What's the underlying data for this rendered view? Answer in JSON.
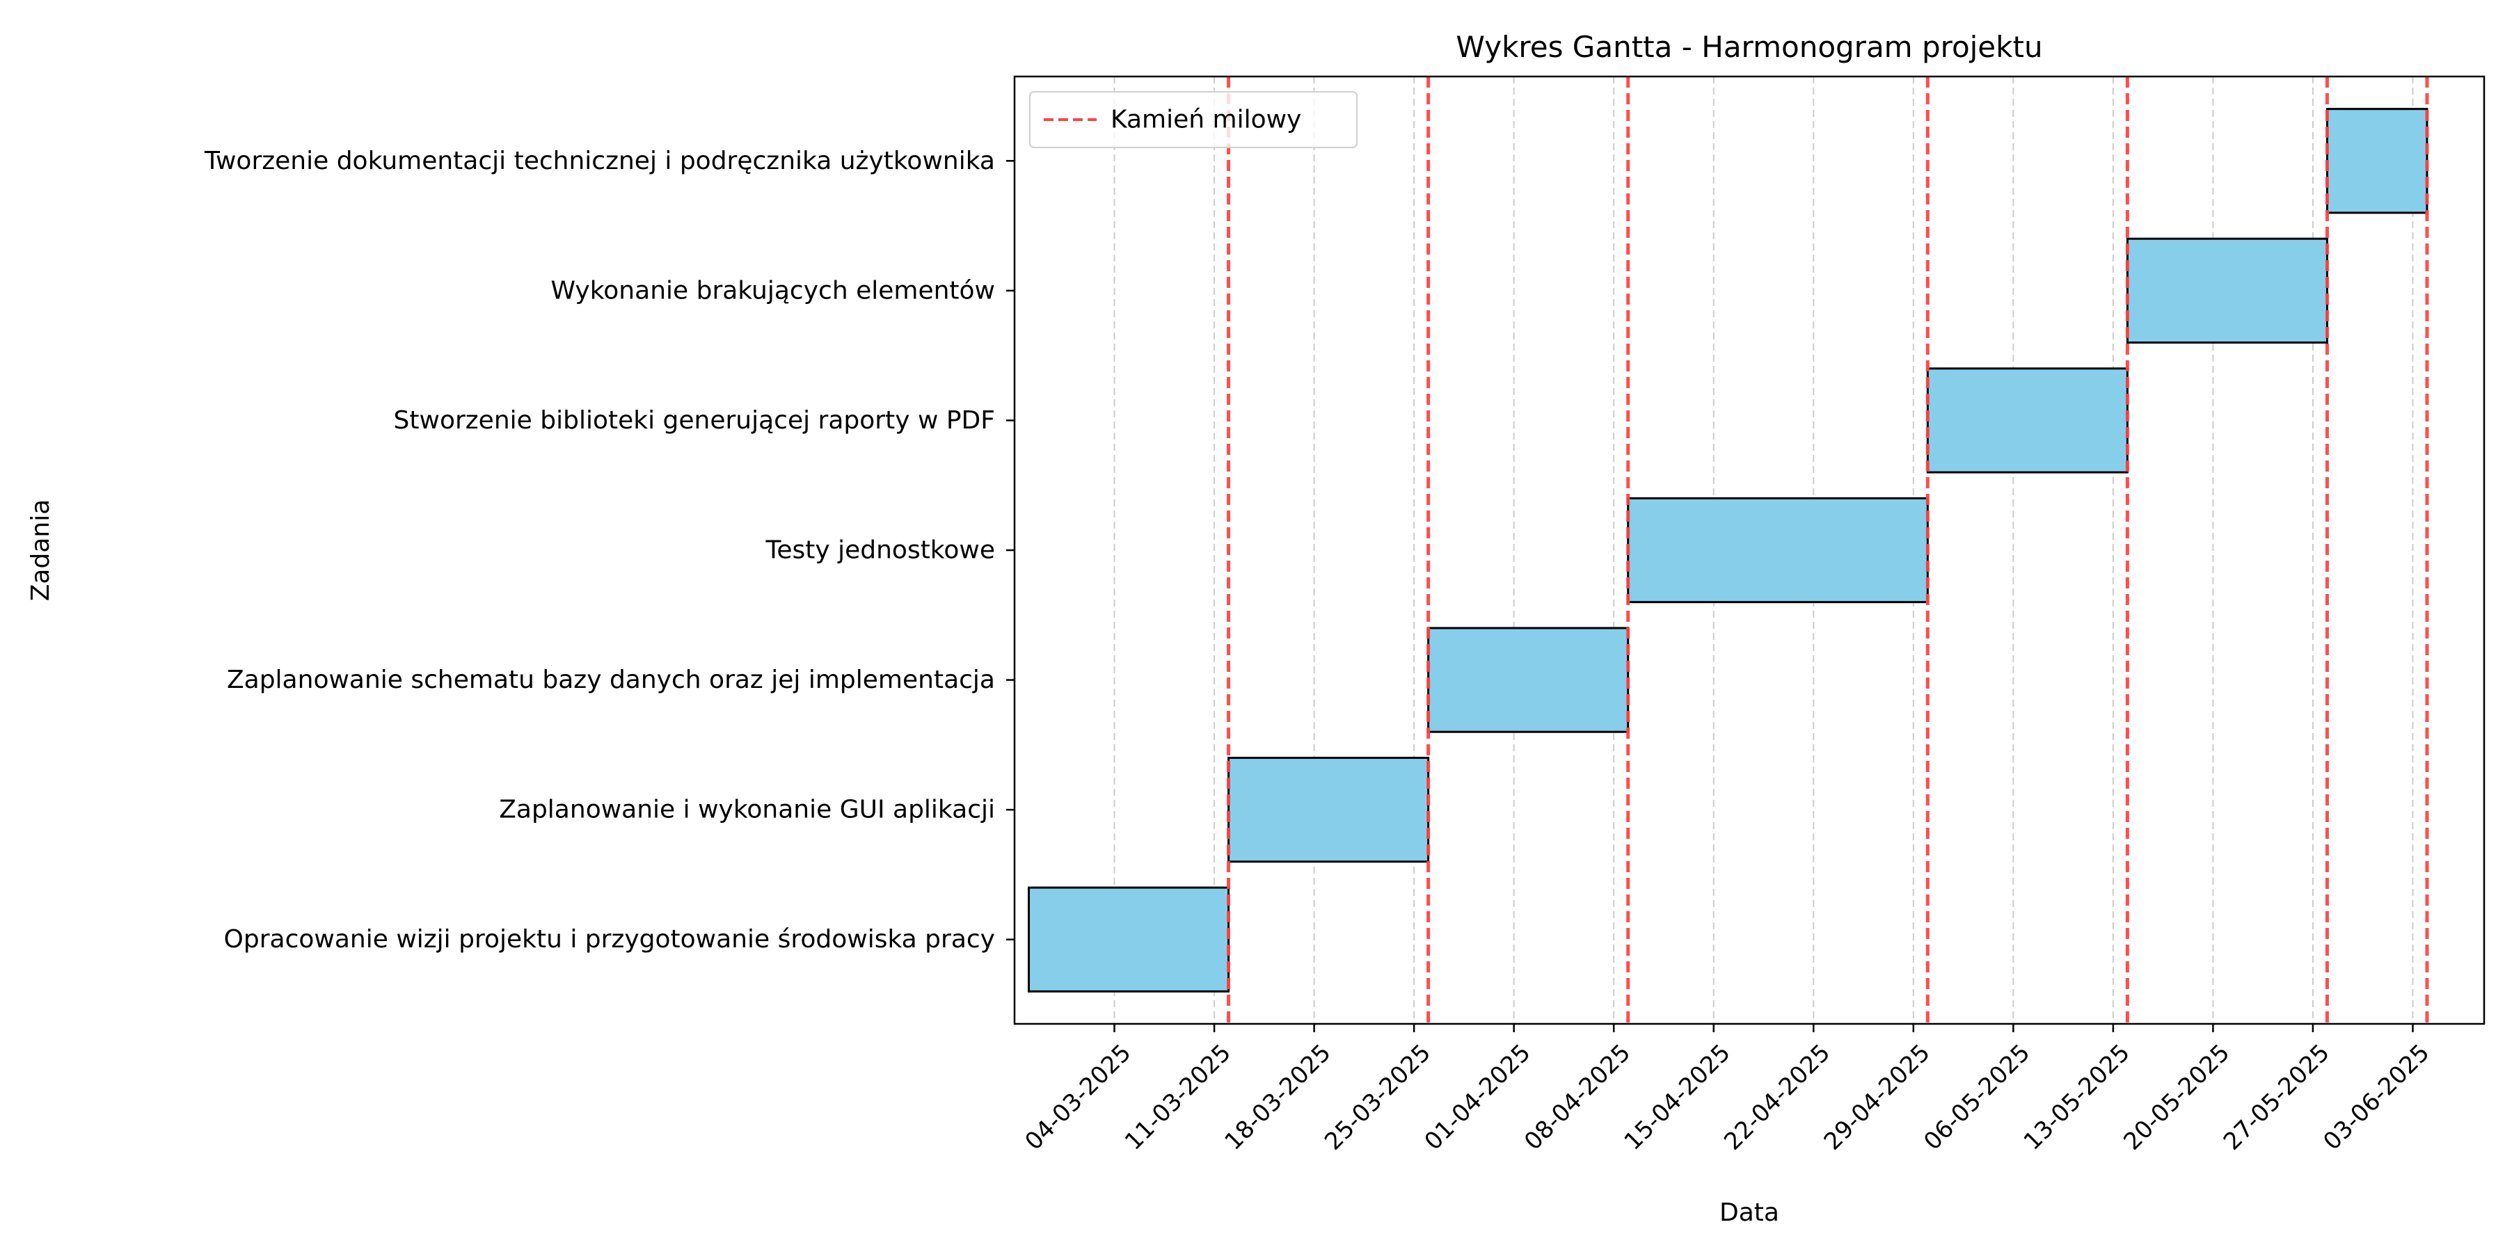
{
  "chart_data": {
    "type": "gantt",
    "title": "Wykres Gantta - Harmonogram projektu",
    "xlabel": "Data",
    "ylabel": "Zadania",
    "xlim": [
      "2025-02-25",
      "2025-06-08"
    ],
    "x_ticks": [
      "2025-03-04",
      "2025-03-11",
      "2025-03-18",
      "2025-03-25",
      "2025-04-01",
      "2025-04-08",
      "2025-04-15",
      "2025-04-22",
      "2025-04-29",
      "2025-05-06",
      "2025-05-13",
      "2025-05-20",
      "2025-05-27",
      "2025-06-03"
    ],
    "x_tick_labels": [
      "04-03-2025",
      "11-03-2025",
      "18-03-2025",
      "25-03-2025",
      "01-04-2025",
      "08-04-2025",
      "15-04-2025",
      "22-04-2025",
      "29-04-2025",
      "06-05-2025",
      "13-05-2025",
      "20-05-2025",
      "27-05-2025",
      "03-06-2025"
    ],
    "tasks": [
      {
        "name": "Opracowanie wizji projektu i przygotowanie środowiska pracy",
        "start": "2025-02-26",
        "end": "2025-03-12"
      },
      {
        "name": "Zaplanowanie i wykonanie GUI aplikacji",
        "start": "2025-03-12",
        "end": "2025-03-26"
      },
      {
        "name": "Zaplanowanie schematu bazy danych oraz jej implementacja",
        "start": "2025-03-26",
        "end": "2025-04-09"
      },
      {
        "name": "Testy jednostkowe",
        "start": "2025-04-09",
        "end": "2025-04-30"
      },
      {
        "name": "Stworzenie biblioteki generującej raporty w PDF",
        "start": "2025-04-30",
        "end": "2025-05-14"
      },
      {
        "name": "Wykonanie brakujących elementów",
        "start": "2025-05-14",
        "end": "2025-05-28"
      },
      {
        "name": "Tworzenie dokumentacji technicznej i podręcznika użytkownika",
        "start": "2025-05-28",
        "end": "2025-06-04"
      }
    ],
    "milestones": [
      "2025-03-12",
      "2025-03-26",
      "2025-04-09",
      "2025-04-30",
      "2025-05-14",
      "2025-05-28",
      "2025-06-04"
    ],
    "legend": {
      "label": "Kamień milowy",
      "placement": "top-left"
    },
    "grid": "x-dashed",
    "colors": {
      "bar": "#87ceeb",
      "bar_edge": "#000000",
      "milestone": "#ff4444",
      "grid": "#cccccc"
    }
  }
}
